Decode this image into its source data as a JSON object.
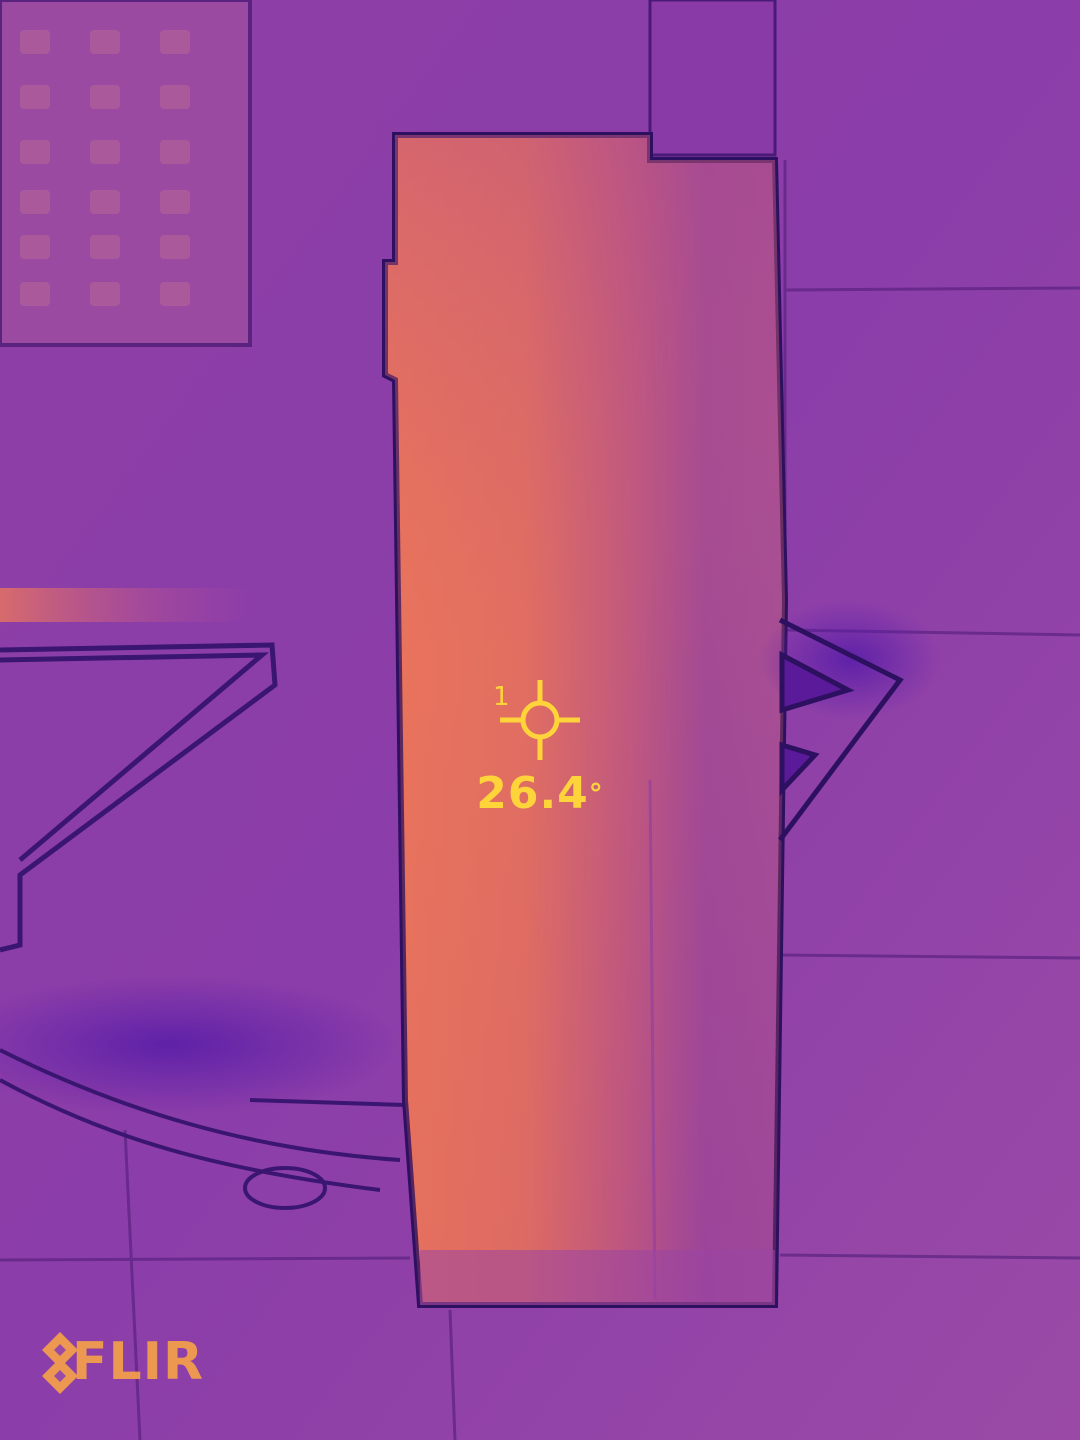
{
  "overlay": {
    "spot_index": "1",
    "spot_temperature_value": "26.4",
    "spot_temperature_unit": "°",
    "brand_logo_text": "FLIR",
    "hud_color": "#ffd43a"
  },
  "palette": {
    "background": "#8a3fa8",
    "warm": "#e8705c",
    "hot": "#f48a50",
    "cool": "#6a2aa8",
    "edge_dark": "#3a1670"
  }
}
